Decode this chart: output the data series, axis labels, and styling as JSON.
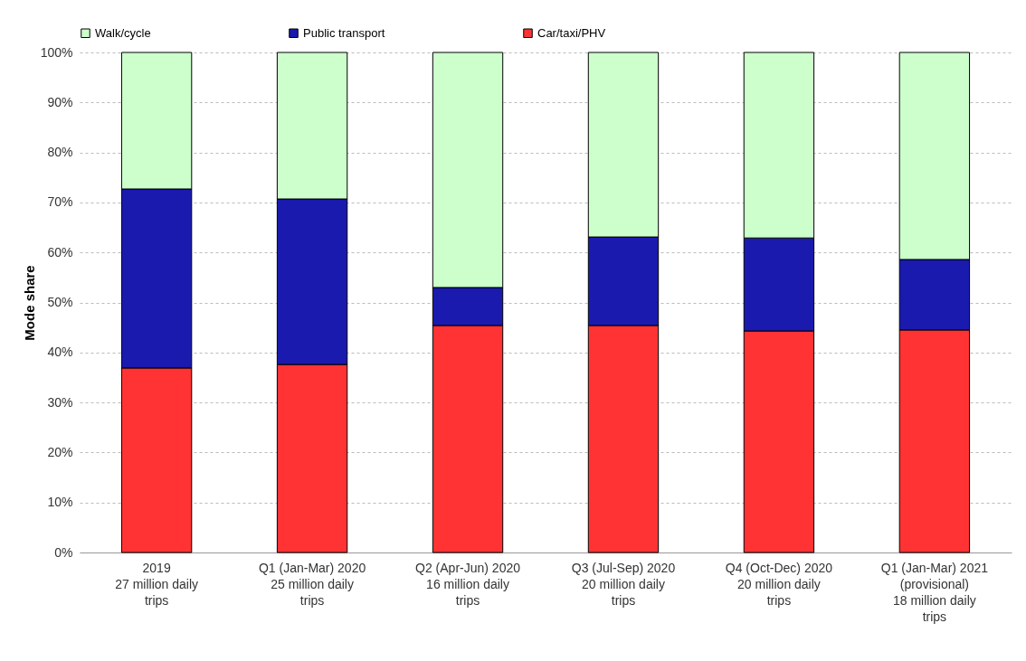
{
  "chart_data": {
    "type": "bar",
    "stacked": true,
    "ylabel": "Mode share",
    "categories": [
      "2019\n27 million daily trips",
      "Q1 (Jan-Mar) 2020\n25 million daily trips",
      "Q2 (Apr-Jun) 2020\n16 million daily trips",
      "Q3 (Jul-Sep) 2020\n20 million daily trips",
      "Q4 (Oct-Dec) 2020\n20 million daily trips",
      "Q1 (Jan-Mar) 2021 (provisional)\n18 million daily trips"
    ],
    "series": [
      {
        "name": "Car/taxi/PHV",
        "color": "#ff3333",
        "values": [
          36.9,
          37.6,
          45.4,
          45.4,
          44.3,
          44.5
        ]
      },
      {
        "name": "Public transport",
        "color": "#1a1aaf",
        "values": [
          35.8,
          33.1,
          7.6,
          17.7,
          18.6,
          14.1
        ]
      },
      {
        "name": "Walk/cycle",
        "color": "#ccffcc",
        "values": [
          27.3,
          29.3,
          47.0,
          36.9,
          37.1,
          41.4
        ]
      }
    ],
    "ylim": [
      0,
      100
    ],
    "yticks": [
      {
        "value": 0,
        "label": "0%"
      },
      {
        "value": 10,
        "label": "10%"
      },
      {
        "value": 20,
        "label": "20%"
      },
      {
        "value": 30,
        "label": "30%"
      },
      {
        "value": 40,
        "label": "40%"
      },
      {
        "value": 50,
        "label": "50%"
      },
      {
        "value": 60,
        "label": "60%"
      },
      {
        "value": 70,
        "label": "70%"
      },
      {
        "value": 80,
        "label": "80%"
      },
      {
        "value": 90,
        "label": "90%"
      },
      {
        "value": 100,
        "label": "100%"
      }
    ],
    "grid": "y",
    "legend": "top"
  }
}
